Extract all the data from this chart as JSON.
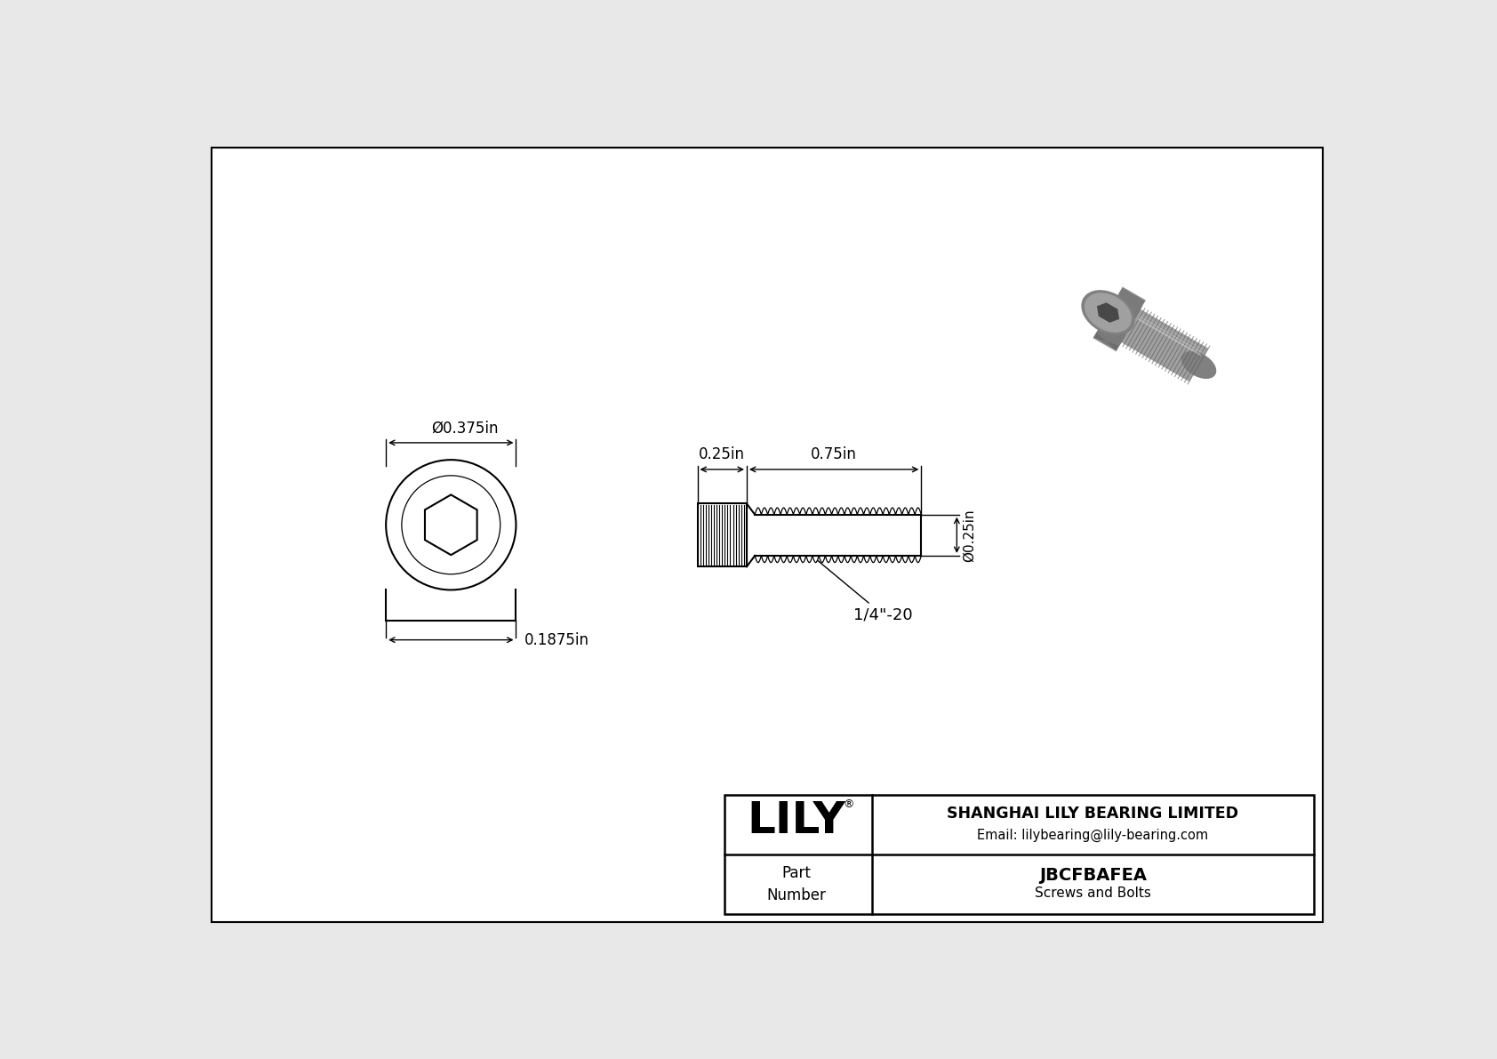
{
  "bg_color": "#e8e8e8",
  "drawing_bg": "#ffffff",
  "border_color": "#000000",
  "line_color": "#000000",
  "title_company": "SHANGHAI LILY BEARING LIMITED",
  "title_email": "Email: lilybearing@lily-bearing.com",
  "part_label": "Part\nNumber",
  "part_number": "JBCFBAFEA",
  "part_type": "Screws and Bolts",
  "lily_text": "LILY",
  "dim_head_diameter": "Ø0.375in",
  "dim_head_height": "0.1875in",
  "dim_shank_length": "0.25in",
  "dim_body_length": "0.75in",
  "dim_thread_dia": "Ø0.25in",
  "dim_thread_label": "1/4\"-20",
  "screw_color_light": "#b8b8b8",
  "screw_color_mid": "#a0a0a0",
  "screw_color_dark": "#808080",
  "screw_color_darker": "#606060",
  "screw_color_socket": "#484848"
}
